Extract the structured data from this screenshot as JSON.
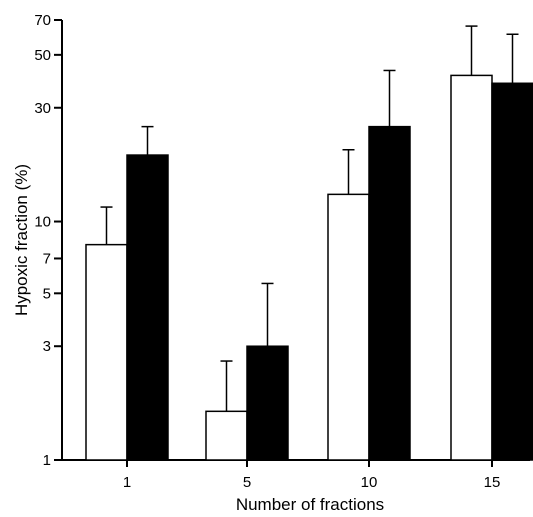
{
  "chart_data": {
    "type": "bar",
    "xlabel": "Number of fractions",
    "ylabel": "Hypoxic fraction (%)",
    "yscale": "log",
    "ylim": [
      1,
      70
    ],
    "yticks": [
      1,
      3,
      5,
      7,
      10,
      30,
      50,
      70
    ],
    "categories": [
      "1",
      "5",
      "10",
      "15"
    ],
    "series": [
      {
        "fill": "#ffffff",
        "values": [
          8,
          1.6,
          13,
          41
        ],
        "error_upper": [
          11.5,
          2.6,
          20,
          66
        ]
      },
      {
        "fill": "#000000",
        "values": [
          19,
          3,
          25,
          38
        ],
        "error_upper": [
          25,
          5.5,
          43,
          61
        ]
      }
    ],
    "grid": false,
    "legend": "none"
  }
}
